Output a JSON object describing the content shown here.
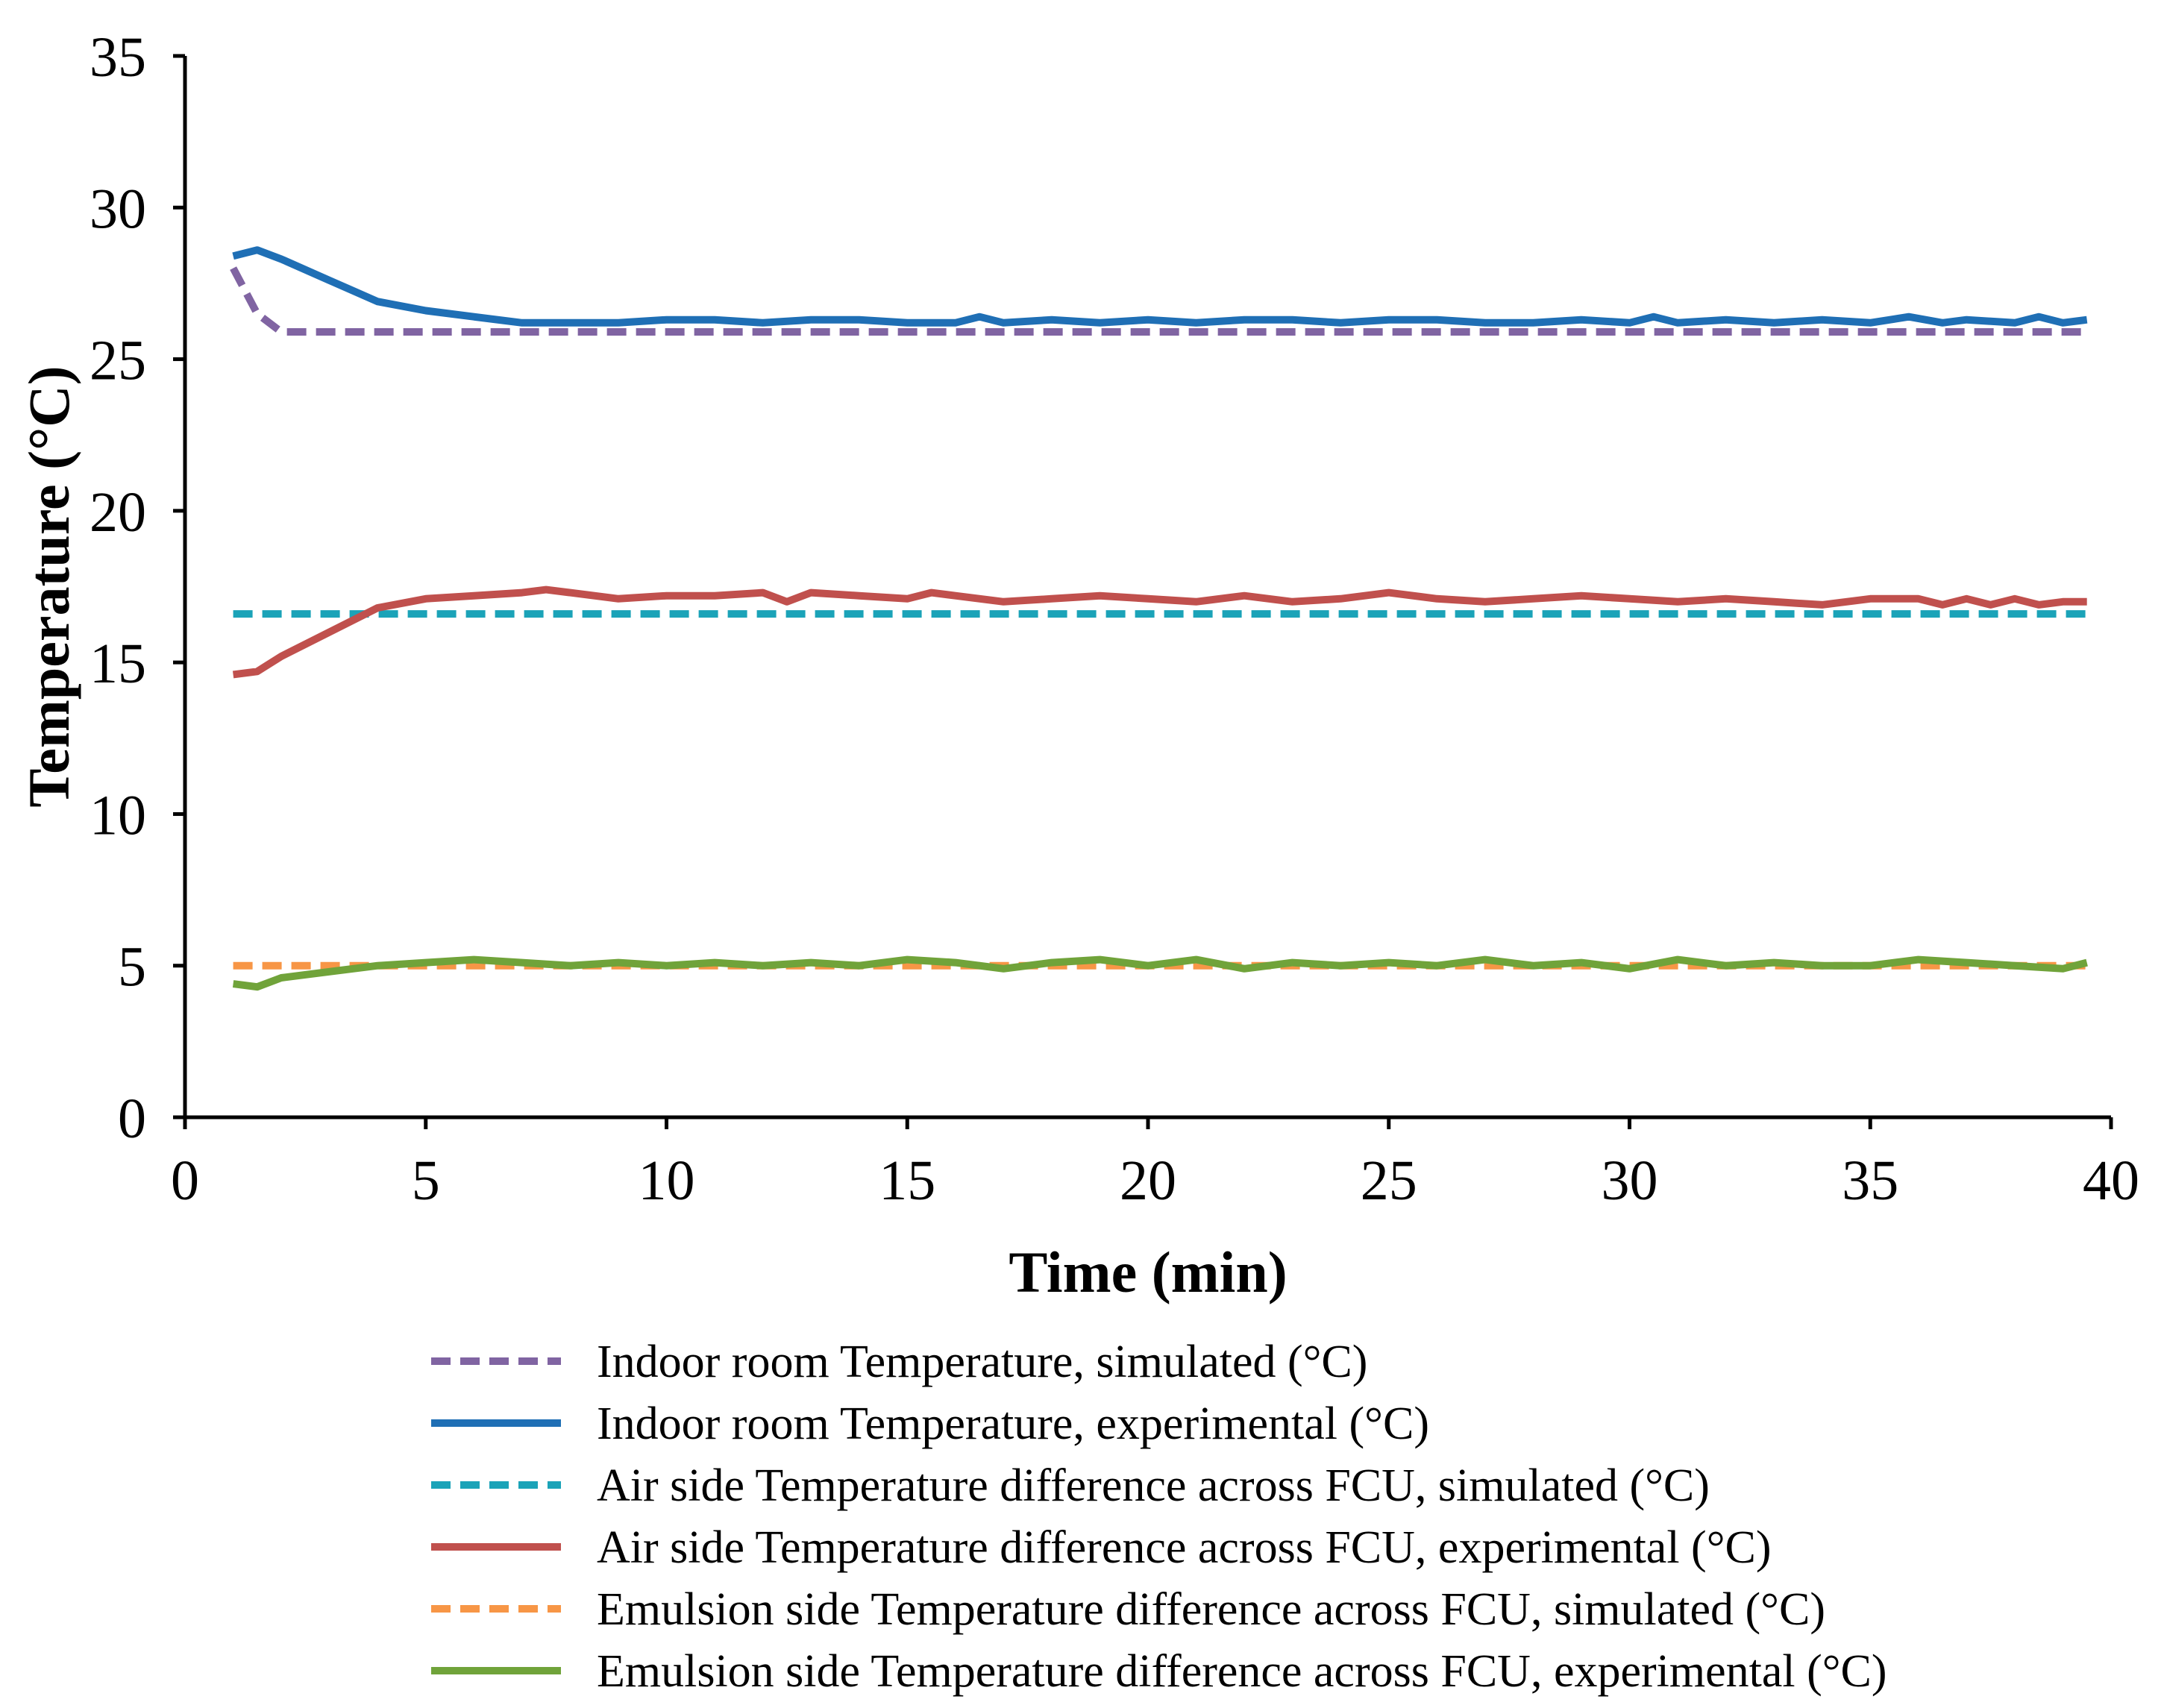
{
  "chart_data": {
    "type": "line",
    "title": "",
    "xlabel": "Time (min)",
    "ylabel": "Temperature  (°C)",
    "xlim": [
      0,
      40
    ],
    "ylim": [
      0,
      35
    ],
    "xticks": [
      0,
      5,
      10,
      15,
      20,
      25,
      30,
      35,
      40
    ],
    "yticks": [
      0,
      5,
      10,
      15,
      20,
      25,
      30,
      35
    ],
    "grid": false,
    "legend_position": "bottom",
    "series": [
      {
        "name": "Indoor room Temperature, simulated  (°C)",
        "color": "#8064A2",
        "style": "dashed",
        "x": [
          1,
          1.5,
          2,
          3,
          5,
          10,
          15,
          20,
          25,
          30,
          35,
          39.5
        ],
        "y": [
          28.0,
          26.5,
          25.9,
          25.9,
          25.9,
          25.9,
          25.9,
          25.9,
          25.9,
          25.9,
          25.9,
          25.9
        ]
      },
      {
        "name": "Indoor room Temperature, experimental  (°C)",
        "color": "#1F6FB5",
        "style": "solid",
        "x": [
          1,
          1.5,
          2,
          3,
          4,
          5,
          6,
          7,
          8,
          9,
          10,
          11,
          12,
          13,
          14,
          15,
          16,
          16.5,
          17,
          18,
          19,
          20,
          21,
          22,
          23,
          24,
          25,
          26,
          27,
          28,
          29,
          30,
          30.5,
          31,
          32,
          33,
          34,
          35,
          35.8,
          36.5,
          37,
          38,
          38.5,
          39,
          39.5
        ],
        "y": [
          28.4,
          28.6,
          28.3,
          27.6,
          26.9,
          26.6,
          26.4,
          26.2,
          26.2,
          26.2,
          26.3,
          26.3,
          26.2,
          26.3,
          26.3,
          26.2,
          26.2,
          26.4,
          26.2,
          26.3,
          26.2,
          26.3,
          26.2,
          26.3,
          26.3,
          26.2,
          26.3,
          26.3,
          26.2,
          26.2,
          26.3,
          26.2,
          26.4,
          26.2,
          26.3,
          26.2,
          26.3,
          26.2,
          26.4,
          26.2,
          26.3,
          26.2,
          26.4,
          26.2,
          26.3
        ]
      },
      {
        "name": "Air side Temperature difference across FCU, simulated  (°C)",
        "color": "#1BA3B8",
        "style": "dashed",
        "x": [
          1,
          39.5
        ],
        "y": [
          16.6,
          16.6
        ]
      },
      {
        "name": "Air side Temperature difference across FCU, experimental  (°C)",
        "color": "#C0504D",
        "style": "solid",
        "x": [
          1,
          1.5,
          2,
          3,
          4,
          5,
          6,
          7,
          7.5,
          8,
          9,
          10,
          11,
          12,
          12.5,
          13,
          14,
          15,
          15.5,
          16,
          17,
          18,
          19,
          20,
          21,
          22,
          23,
          24,
          25,
          26,
          27,
          28,
          29,
          30,
          31,
          32,
          33,
          34,
          35,
          36,
          36.5,
          37,
          37.5,
          38,
          38.5,
          39,
          39.5
        ],
        "y": [
          14.6,
          14.7,
          15.2,
          16.0,
          16.8,
          17.1,
          17.2,
          17.3,
          17.4,
          17.3,
          17.1,
          17.2,
          17.2,
          17.3,
          17.0,
          17.3,
          17.2,
          17.1,
          17.3,
          17.2,
          17.0,
          17.1,
          17.2,
          17.1,
          17.0,
          17.2,
          17.0,
          17.1,
          17.3,
          17.1,
          17.0,
          17.1,
          17.2,
          17.1,
          17.0,
          17.1,
          17.0,
          16.9,
          17.1,
          17.1,
          16.9,
          17.1,
          16.9,
          17.1,
          16.9,
          17.0,
          17.0
        ]
      },
      {
        "name": "Emulsion side Temperature difference across FCU, simulated  (°C)",
        "color": "#F79646",
        "style": "dashed",
        "x": [
          1,
          39.5
        ],
        "y": [
          5.0,
          5.0
        ]
      },
      {
        "name": "Emulsion side Temperature difference across FCU, experimental  (°C)",
        "color": "#70A33A",
        "style": "solid",
        "x": [
          1,
          1.5,
          2,
          3,
          4,
          5,
          6,
          7,
          8,
          9,
          10,
          11,
          12,
          13,
          14,
          15,
          16,
          17,
          18,
          19,
          20,
          21,
          22,
          23,
          24,
          25,
          26,
          27,
          28,
          29,
          30,
          31,
          32,
          33,
          34,
          35,
          36,
          37,
          38,
          39,
          39.5
        ],
        "y": [
          4.4,
          4.3,
          4.6,
          4.8,
          5.0,
          5.1,
          5.2,
          5.1,
          5.0,
          5.1,
          5.0,
          5.1,
          5.0,
          5.1,
          5.0,
          5.2,
          5.1,
          4.9,
          5.1,
          5.2,
          5.0,
          5.2,
          4.9,
          5.1,
          5.0,
          5.1,
          5.0,
          5.2,
          5.0,
          5.1,
          4.9,
          5.2,
          5.0,
          5.1,
          5.0,
          5.0,
          5.2,
          5.1,
          5.0,
          4.9,
          5.1
        ]
      }
    ]
  }
}
